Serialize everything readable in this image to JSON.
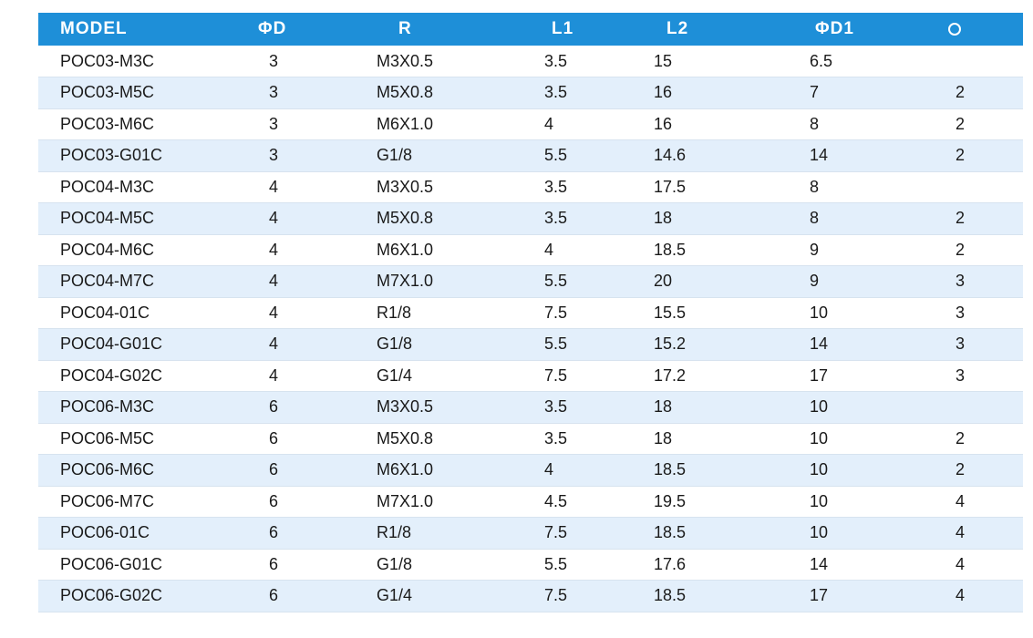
{
  "table": {
    "headers": [
      "MODEL",
      "ΦD",
      "R",
      "L1",
      "L2",
      "ΦD1"
    ],
    "last_header_icon": "circle-icon",
    "colors": {
      "header_bg": "#1e8fd8",
      "header_text": "#ffffff",
      "row_alt_bg": "#e3effb",
      "row_bg": "#ffffff"
    },
    "rows": [
      [
        "POC03-M3C",
        "3",
        "M3X0.5",
        "3.5",
        "15",
        "6.5",
        ""
      ],
      [
        "POC03-M5C",
        "3",
        "M5X0.8",
        "3.5",
        "16",
        "7",
        "2"
      ],
      [
        "POC03-M6C",
        "3",
        "M6X1.0",
        "4",
        "16",
        "8",
        "2"
      ],
      [
        "POC03-G01C",
        "3",
        "G1/8",
        "5.5",
        "14.6",
        "14",
        "2"
      ],
      [
        "POC04-M3C",
        "4",
        "M3X0.5",
        "3.5",
        "17.5",
        "8",
        ""
      ],
      [
        "POC04-M5C",
        "4",
        "M5X0.8",
        "3.5",
        "18",
        "8",
        "2"
      ],
      [
        "POC04-M6C",
        "4",
        "M6X1.0",
        "4",
        "18.5",
        "9",
        "2"
      ],
      [
        "POC04-M7C",
        "4",
        "M7X1.0",
        "5.5",
        "20",
        "9",
        "3"
      ],
      [
        "POC04-01C",
        "4",
        "R1/8",
        "7.5",
        "15.5",
        "10",
        "3"
      ],
      [
        "POC04-G01C",
        "4",
        "G1/8",
        "5.5",
        "15.2",
        "14",
        "3"
      ],
      [
        "POC04-G02C",
        "4",
        "G1/4",
        "7.5",
        "17.2",
        "17",
        "3"
      ],
      [
        "POC06-M3C",
        "6",
        "M3X0.5",
        "3.5",
        "18",
        "10",
        ""
      ],
      [
        "POC06-M5C",
        "6",
        "M5X0.8",
        "3.5",
        "18",
        "10",
        "2"
      ],
      [
        "POC06-M6C",
        "6",
        "M6X1.0",
        "4",
        "18.5",
        "10",
        "2"
      ],
      [
        "POC06-M7C",
        "6",
        "M7X1.0",
        "4.5",
        "19.5",
        "10",
        "4"
      ],
      [
        "POC06-01C",
        "6",
        "R1/8",
        "7.5",
        "18.5",
        "10",
        "4"
      ],
      [
        "POC06-G01C",
        "6",
        "G1/8",
        "5.5",
        "17.6",
        "14",
        "4"
      ],
      [
        "POC06-G02C",
        "6",
        "G1/4",
        "7.5",
        "18.5",
        "17",
        "4"
      ]
    ]
  }
}
